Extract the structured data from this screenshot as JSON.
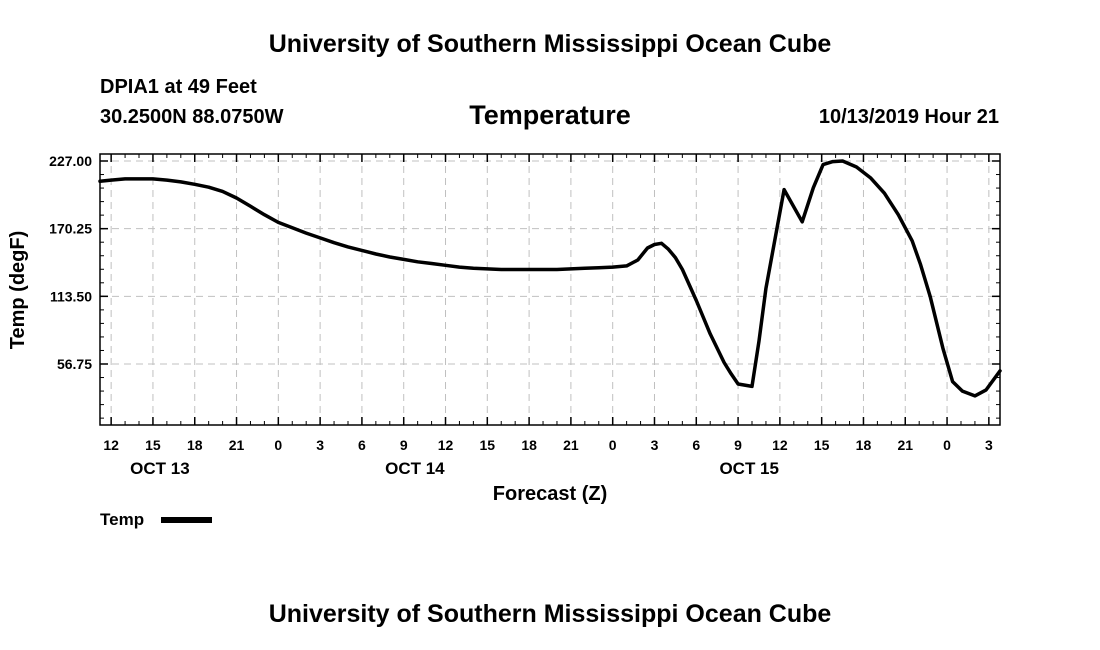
{
  "header": {
    "title": "University of Southern Mississippi Ocean Cube",
    "station": "DPIA1 at 49 Feet",
    "coords": "30.2500N 88.0750W",
    "datetime": "10/13/2019 Hour 21"
  },
  "footer": {
    "title": "University of Southern Mississippi Ocean Cube"
  },
  "colors": {
    "line": "#000000",
    "grid": "#c0c0c0",
    "background": "#ffffff"
  },
  "chart_data": {
    "type": "line",
    "title": "Temperature",
    "xlabel": "Forecast (Z)",
    "ylabel": "Temp (degF)",
    "xlim": [
      11.2,
      75.8
    ],
    "ylim": [
      0,
      230
    ],
    "grid": true,
    "legend_position": "bottom-left",
    "yticks": [
      {
        "value": 56.75,
        "label": "56.75"
      },
      {
        "value": 113.5,
        "label": "113.50"
      },
      {
        "value": 170.25,
        "label": "170.25"
      },
      {
        "value": 227.0,
        "label": "227.00"
      }
    ],
    "xticks": [
      {
        "value": 12,
        "label": "12"
      },
      {
        "value": 15,
        "label": "15"
      },
      {
        "value": 18,
        "label": "18"
      },
      {
        "value": 21,
        "label": "21"
      },
      {
        "value": 24,
        "label": "0"
      },
      {
        "value": 27,
        "label": "3"
      },
      {
        "value": 30,
        "label": "6"
      },
      {
        "value": 33,
        "label": "9"
      },
      {
        "value": 36,
        "label": "12"
      },
      {
        "value": 39,
        "label": "15"
      },
      {
        "value": 42,
        "label": "18"
      },
      {
        "value": 45,
        "label": "21"
      },
      {
        "value": 48,
        "label": "0"
      },
      {
        "value": 51,
        "label": "3"
      },
      {
        "value": 54,
        "label": "6"
      },
      {
        "value": 57,
        "label": "9"
      },
      {
        "value": 60,
        "label": "12"
      },
      {
        "value": 63,
        "label": "15"
      },
      {
        "value": 66,
        "label": "18"
      },
      {
        "value": 69,
        "label": "21"
      },
      {
        "value": 72,
        "label": "0"
      },
      {
        "value": 75,
        "label": "3"
      }
    ],
    "day_labels": [
      {
        "value": 15.5,
        "label": "OCT 13"
      },
      {
        "value": 33.8,
        "label": "OCT 14"
      },
      {
        "value": 57.8,
        "label": "OCT 15"
      }
    ],
    "series": [
      {
        "name": "Temp",
        "x": [
          11.2,
          12,
          13,
          14,
          15,
          16,
          17,
          18,
          19,
          20,
          21,
          22,
          23,
          24,
          25,
          26,
          27,
          28,
          29,
          30,
          31,
          32,
          33,
          34,
          35,
          36,
          37,
          38,
          39,
          40,
          41,
          42,
          43,
          44,
          45,
          46,
          47,
          48,
          49,
          49.8,
          50.5,
          51,
          51.5,
          52,
          52.5,
          53,
          54,
          55,
          56,
          56.5,
          57,
          58,
          58.5,
          59,
          60.3,
          61.6,
          62.4,
          63.1,
          63.8,
          64.5,
          65.5,
          66.5,
          67.5,
          68.5,
          69.5,
          70.1,
          70.8,
          71.7,
          72.4,
          73.1,
          74,
          74.8,
          75.8
        ],
        "values": [
          210,
          211,
          212,
          212,
          212,
          211,
          209.5,
          207.5,
          205,
          201.5,
          196,
          189,
          182,
          175.5,
          171,
          166.5,
          162.5,
          158.5,
          155,
          152,
          149,
          146.5,
          144.5,
          142.5,
          141,
          139.5,
          138,
          137,
          136.5,
          136,
          136,
          136,
          136,
          136,
          136.5,
          137,
          137.5,
          138,
          139,
          144,
          154,
          157,
          158,
          153,
          146,
          136,
          110,
          82,
          58,
          48.5,
          40,
          38,
          76,
          120,
          203,
          176,
          204.5,
          224,
          226.5,
          227,
          222,
          213,
          200,
          182,
          160,
          140,
          113,
          70,
          42,
          34,
          30,
          35,
          51
        ],
        "extra_points": []
      }
    ]
  }
}
